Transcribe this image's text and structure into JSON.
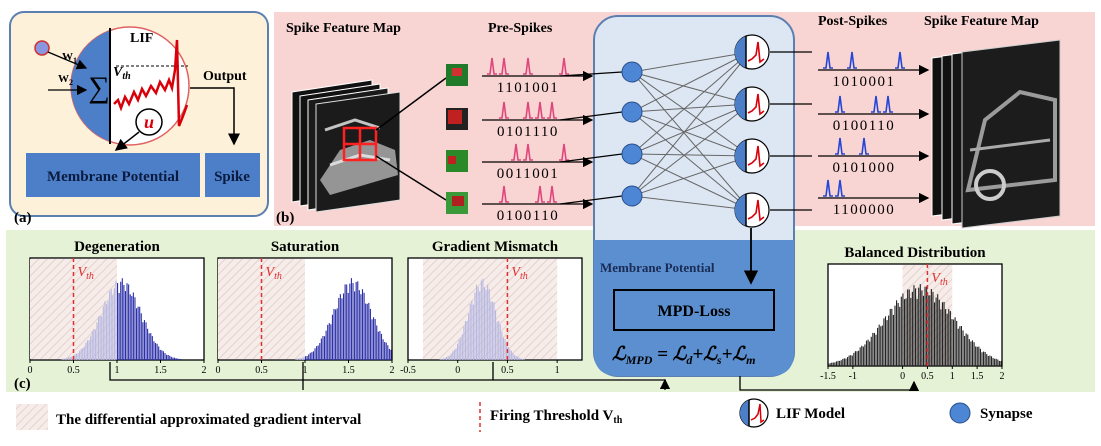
{
  "panel_a": {
    "tag": "(a)",
    "lif_label": "LIF",
    "w1": "W",
    "w1_sub": "1",
    "w2": "W",
    "w2_sub": "2",
    "sigma": "∑",
    "vth": "V",
    "vth_sub": "th",
    "u_label": "u",
    "output_label": "Output",
    "membrane_box": "Membrane Potential",
    "spike_box": "Spike",
    "colors": {
      "panel_bg": "#fdf2d9",
      "panel_border": "#5b7fb0",
      "box_fill": "#4d7fc8",
      "trace": "#d8000a"
    }
  },
  "panel_b": {
    "tag": "(b)",
    "left_title": "Spike Feature Map",
    "pre_title": "Pre-Spikes",
    "post_title": "Post-Spikes",
    "right_title": "Spike Feature Map",
    "pre_codes": [
      "1101001",
      "0101110",
      "0011001",
      "0100110"
    ],
    "post_codes": [
      "1010001",
      "0100110",
      "0101000",
      "1100000"
    ],
    "membrane_label": "Membrane Potential",
    "mpd_box": "MPD-Loss",
    "formula": "ℒMPD = ℒd+ℒs+ℒm",
    "colors": {
      "bg": "#f8d5d3",
      "pre_spike": "#e0457b",
      "post_spike": "#2546d6",
      "net_bg": "#dde7f3",
      "mpd_fill": "#5b8fd0",
      "node": "#4d86d4"
    }
  },
  "panel_c": {
    "tag": "(c)",
    "vth_label": "V",
    "vth_sub": "th",
    "histograms": [
      {
        "title": "Degeneration",
        "ticks": [
          "0",
          "0.5",
          "1",
          "1.5",
          "2"
        ]
      },
      {
        "title": "Saturation",
        "ticks": [
          "0",
          "0.5",
          "1",
          "1.5",
          "2"
        ]
      },
      {
        "title": "Gradient Mismatch",
        "ticks": [
          "-0.5",
          "0",
          "0.5",
          "1"
        ]
      },
      {
        "title": "Balanced Distribution",
        "ticks": [
          "-1.5",
          "-1",
          "0",
          "0.5",
          "1",
          "1.5",
          "2"
        ]
      }
    ],
    "colors": {
      "bg": "#e6f2d6",
      "bar": "#2b2fa8",
      "bar_light": "#b7b8e2",
      "threshold": "#e03030",
      "hatch": "#f1e4e0"
    }
  },
  "legend": {
    "interval": "The differential approximated gradient interval",
    "threshold": "Firing Threshold V",
    "threshold_sub": "th",
    "lif": "LIF Model",
    "synapse": "Synapse"
  }
}
